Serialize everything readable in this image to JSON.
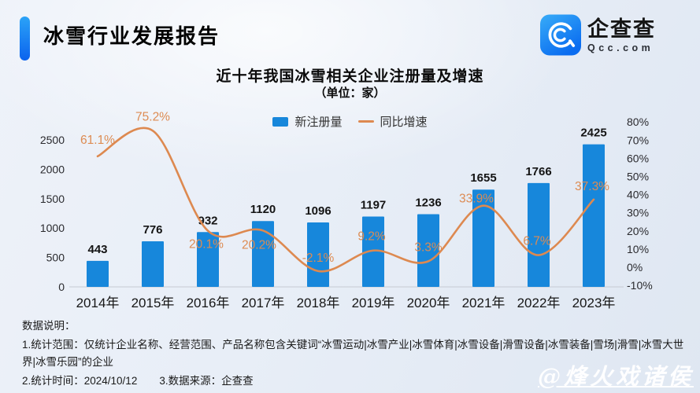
{
  "header": {
    "title": "冰雪行业发展报告",
    "logo_name": "企查查",
    "logo_domain": "Qcc.com"
  },
  "chart_data": {
    "type": "bar+line",
    "title": "近十年我国冰雪相关企业注册量及增速",
    "subtitle": "（单位：家）",
    "categories": [
      "2014年",
      "2015年",
      "2016年",
      "2017年",
      "2018年",
      "2019年",
      "2020年",
      "2021年",
      "2022年",
      "2023年"
    ],
    "series": [
      {
        "name": "新注册量",
        "type": "bar",
        "color": "#1787db",
        "values": [
          443,
          776,
          932,
          1120,
          1096,
          1197,
          1236,
          1655,
          1766,
          2425
        ]
      },
      {
        "name": "同比增速",
        "type": "line",
        "color": "#dd8950",
        "values": [
          61.1,
          75.2,
          20.1,
          20.2,
          -2.1,
          9.2,
          3.3,
          33.9,
          6.7,
          37.3
        ],
        "labels": [
          "61.1%",
          "75.2%",
          "20.1%",
          "20.2%",
          "-2.1%",
          "9.2%",
          "3.3%",
          "33.9%",
          "6.7%",
          "37.3%"
        ],
        "label_dx": [
          0,
          0,
          -2,
          -5,
          0,
          -2,
          0,
          -9,
          -2,
          -2
        ],
        "label_dy": [
          -21,
          -18,
          17,
          18,
          -17,
          -18,
          -18,
          -9,
          -18,
          -17
        ]
      }
    ],
    "left_axis": {
      "min": 0,
      "max": 2500,
      "ticks": [
        0,
        500,
        1000,
        1500,
        2000,
        2500
      ]
    },
    "right_axis": {
      "min": -10,
      "max": 80,
      "ticks": [
        80,
        70,
        60,
        50,
        40,
        30,
        20,
        10,
        0,
        -10
      ],
      "suffix": "%"
    },
    "grid": false,
    "legend_position": "top-center"
  },
  "notes": {
    "heading": "数据说明：",
    "scope": "1.统计范围：仅统计企业名称、经营范围、产品名称包含关键词“冰雪运动|冰雪产业|冰雪体育|冰雪设备|滑雪设备|冰雪装备|雪场|滑雪|冰雪大世界|冰雪乐园”的企业",
    "time": "2.统计时间：2024/10/12",
    "source": "3.数据来源：企查查"
  },
  "watermark": "@烽火戏诸侯"
}
